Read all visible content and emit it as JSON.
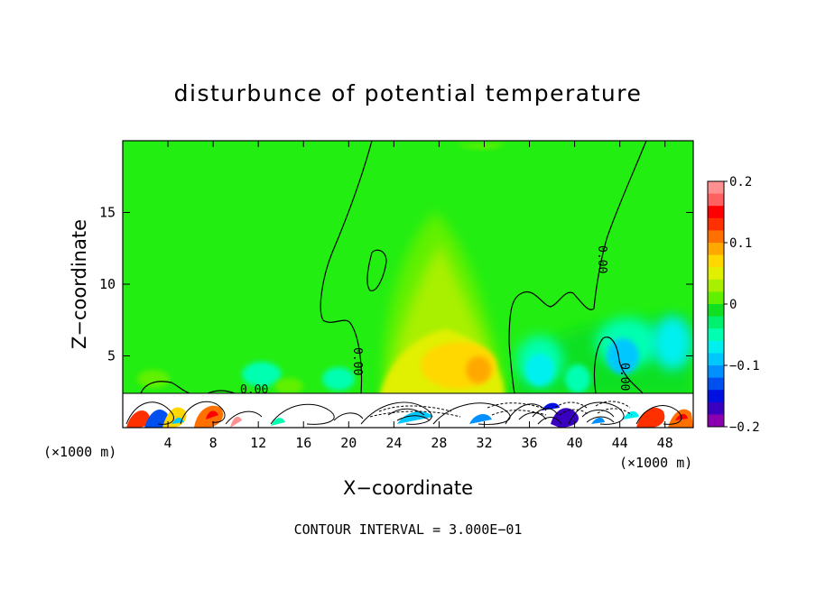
{
  "chart_data": {
    "type": "heatmap",
    "title": "disturbunce of potential temperature",
    "xlabel": "X−coordinate",
    "ylabel": "Z−coordinate",
    "x_unit": "(×1000 m)",
    "x_unit_right": "(×1000 m)",
    "xlim": [
      0,
      50.5
    ],
    "ylim": [
      0,
      20
    ],
    "x_ticks": [
      4,
      8,
      12,
      16,
      20,
      24,
      28,
      32,
      36,
      40,
      44,
      48
    ],
    "y_ticks": [
      5,
      10,
      15
    ],
    "contour_label": "0.00",
    "contour_interval": "CONTOUR INTERVAL = 3.000E−01",
    "colorbar": {
      "min": -0.2,
      "max": 0.2,
      "tick_values": [
        0.2,
        0.1,
        0,
        -0.1,
        -0.2
      ],
      "tick_labels": [
        "0.2",
        "0.1",
        "0",
        "−0.1",
        "−0.2"
      ],
      "colors": [
        "#8a00b0",
        "#3a00c0",
        "#0010e0",
        "#0050f0",
        "#0090ff",
        "#00c8ff",
        "#00f0f0",
        "#00ffb0",
        "#00f070",
        "#10e020",
        "#60f000",
        "#a8f000",
        "#e0f000",
        "#ffd800",
        "#ffa800",
        "#ff7000",
        "#ff3000",
        "#ff0000",
        "#ff6060",
        "#ff9090"
      ]
    },
    "features": [
      {
        "type": "positive-anomaly",
        "x": 30.5,
        "z": 4,
        "value": 0.1
      },
      {
        "type": "positive-plume",
        "x": 27,
        "z": 9,
        "value": 0.04
      },
      {
        "type": "negative-anomaly",
        "x": 36.5,
        "z": 4.5,
        "value": -0.06
      },
      {
        "type": "negative-anomaly",
        "x": 46,
        "z": 5.5,
        "value": -0.05
      },
      {
        "type": "negative-anomaly",
        "x": 43.5,
        "z": 4.5,
        "value": -0.06
      },
      {
        "type": "weak-anomaly",
        "x": 12,
        "z": 3.5,
        "value": -0.03
      }
    ]
  }
}
